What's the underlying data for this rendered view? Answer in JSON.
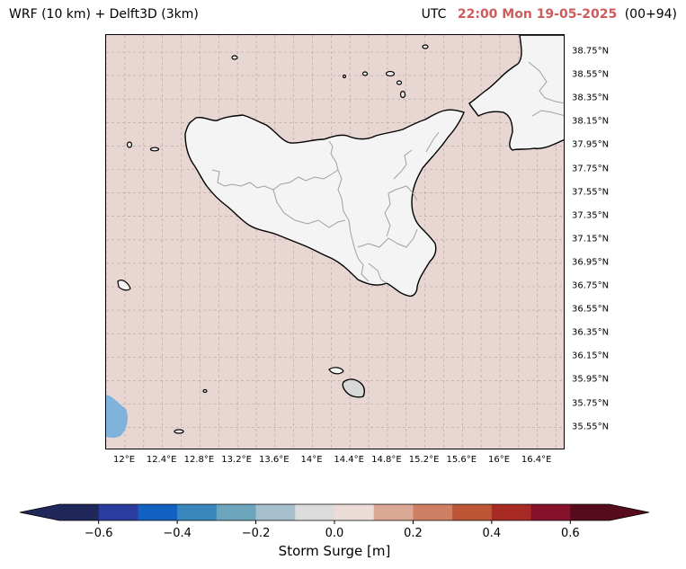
{
  "title": {
    "left": "WRF (10 km) + Delft3D (3km)",
    "utc_label": "UTC",
    "timestamp": "22:00 Mon 19-05-2025",
    "lead": "(00+94)"
  },
  "colors": {
    "sea": "#e8d6d3",
    "land": "#f4f4f4",
    "timestamp": "#cd5c5c",
    "negative_surge_patch": "#7fb3dc"
  },
  "lat_labels": [
    "38.75°N",
    "38.55°N",
    "38.35°N",
    "38.15°N",
    "37.95°N",
    "37.75°N",
    "37.55°N",
    "37.35°N",
    "37.15°N",
    "36.95°N",
    "36.75°N",
    "36.55°N",
    "36.35°N",
    "36.15°N",
    "35.95°N",
    "35.75°N",
    "35.55°N"
  ],
  "lon_labels": [
    "12°E",
    "12.4°E",
    "12.8°E",
    "13.2°E",
    "13.6°E",
    "14°E",
    "14.4°E",
    "14.8°E",
    "15.2°E",
    "15.6°E",
    "16°E",
    "16.4°E"
  ],
  "colorbar": {
    "label": "Storm Surge [m]",
    "ticks": [
      "−0.6",
      "−0.4",
      "−0.2",
      "0.0",
      "0.2",
      "0.4",
      "0.6"
    ],
    "tick_values": [
      -0.6,
      -0.4,
      -0.2,
      0.0,
      0.2,
      0.4,
      0.6
    ],
    "range": [
      -0.7,
      0.7
    ],
    "colors": [
      "#20275a",
      "#2a3c9e",
      "#1361c0",
      "#3a87bd",
      "#6da5bd",
      "#a5bfcc",
      "#dcdcdc",
      "#ecdcd7",
      "#daa894",
      "#cf8064",
      "#bd5637",
      "#a82a25",
      "#85112a",
      "#560c1d"
    ]
  }
}
